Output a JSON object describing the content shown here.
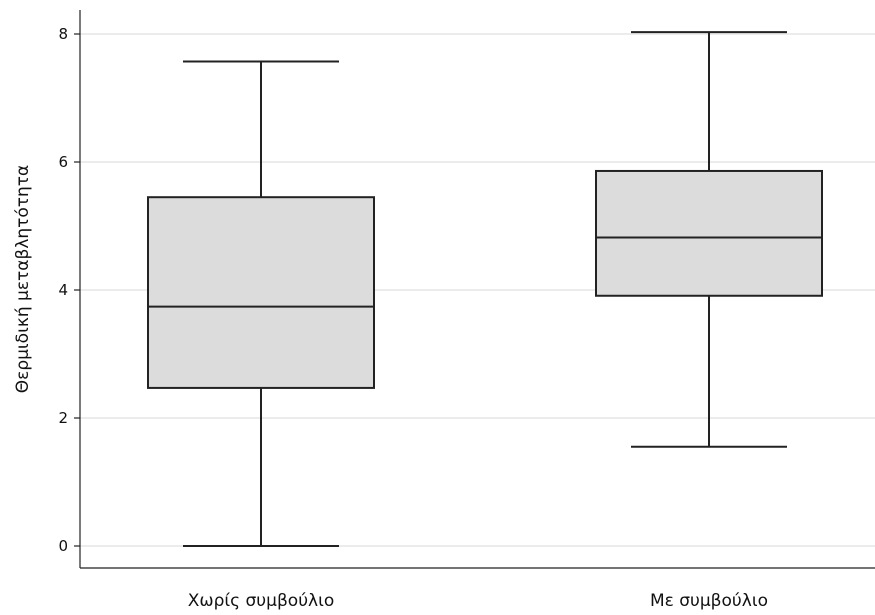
{
  "chart_data": {
    "type": "boxplot",
    "title": "",
    "xlabel": "",
    "ylabel": "Θερμιδική μεταβλητότητα",
    "ylim": [
      -0.3,
      8.4
    ],
    "yticks": [
      0,
      2,
      4,
      6,
      8
    ],
    "grid": true,
    "box_color": "#dcdcdc",
    "categories": [
      "Χωρίς συμβούλιο",
      "Με συμβούλιο"
    ],
    "boxes": [
      {
        "category": "Χωρίς συμβούλιο",
        "min": 0.0,
        "q1": 2.47,
        "median": 3.74,
        "q3": 5.45,
        "max": 7.57
      },
      {
        "category": "Με συμβούλιο",
        "min": 1.55,
        "q1": 3.91,
        "median": 4.82,
        "q3": 5.86,
        "max": 8.03
      }
    ]
  }
}
